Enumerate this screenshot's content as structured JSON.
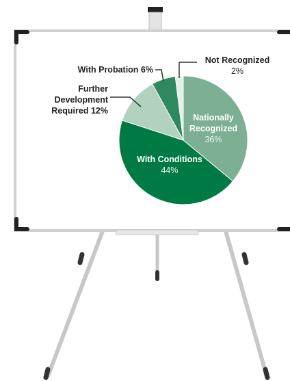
{
  "chart_data": {
    "type": "pie",
    "categories": [
      "Nationally Recognized",
      "With Conditions",
      "Further Development Required",
      "With Probation",
      "Not Recognized"
    ],
    "values": [
      36,
      44,
      12,
      6,
      2
    ],
    "value_labels": [
      "36%",
      "44%",
      "12%",
      "6%",
      "2%"
    ],
    "colors": [
      "#7daf94",
      "#007a45",
      "#b3d1bf",
      "#2e8a5e",
      "#e3efe7"
    ]
  }
}
